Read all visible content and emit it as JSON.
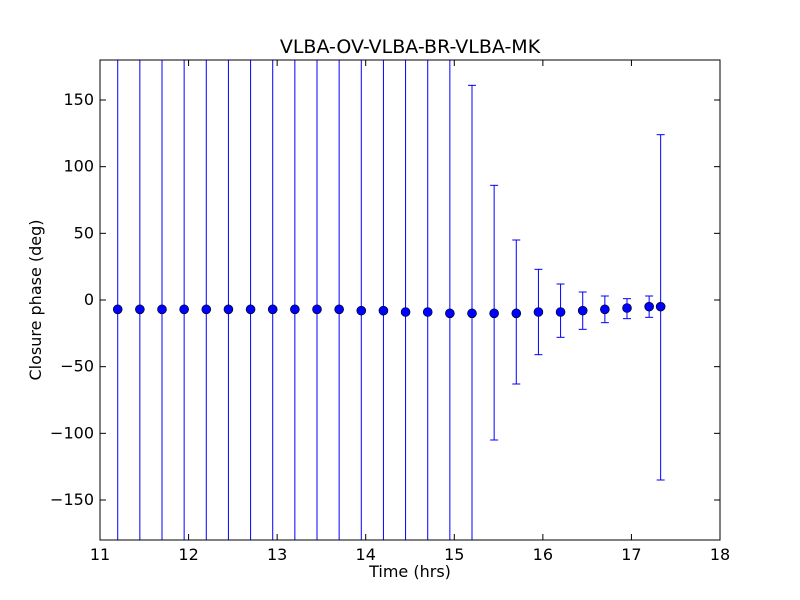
{
  "chart_data": {
    "type": "scatter",
    "title": "VLBA-OV-VLBA-BR-VLBA-MK",
    "xlabel": "Time (hrs)",
    "ylabel": "Closure phase (deg)",
    "xlim": [
      11,
      18
    ],
    "ylim": [
      -180,
      180
    ],
    "xticks": [
      "11",
      "12",
      "13",
      "14",
      "15",
      "16",
      "17",
      "18"
    ],
    "yticks": [
      "−150",
      "−100",
      "−50",
      "0",
      "50",
      "100",
      "150"
    ],
    "grid": false,
    "legend": "none",
    "colors": {
      "marker": "#0000ff",
      "errorbar": "#0000ff",
      "axes": "#000000"
    },
    "series": [
      {
        "x": [
          11.2,
          11.45,
          11.7,
          11.95,
          12.2,
          12.45,
          12.7,
          12.95,
          13.2,
          13.45,
          13.7,
          13.95,
          14.2,
          14.45,
          14.7,
          14.95,
          15.2,
          15.45,
          15.7,
          15.95,
          16.2,
          16.45,
          16.7,
          16.95,
          17.2,
          17.33
        ],
        "y": [
          -7,
          -7,
          -7,
          -7,
          -7,
          -7,
          -7,
          -7,
          -7,
          -7,
          -7,
          -8,
          -8,
          -9,
          -9,
          -10,
          -10,
          -10,
          -10,
          -9,
          -9,
          -8,
          -7,
          -6,
          -5,
          -5
        ],
        "err_low": [
          -180,
          -180,
          -180,
          -180,
          -180,
          -180,
          -180,
          -180,
          -180,
          -180,
          -180,
          -180,
          -180,
          -180,
          -180,
          -180,
          -180,
          -105,
          -63,
          -41,
          -28,
          -22,
          -17,
          -14,
          -13,
          -135
        ],
        "err_high": [
          180,
          180,
          180,
          180,
          180,
          180,
          180,
          180,
          180,
          180,
          180,
          180,
          180,
          180,
          180,
          180,
          161,
          86,
          45,
          23,
          12,
          6,
          3,
          1,
          3,
          124
        ]
      }
    ]
  }
}
